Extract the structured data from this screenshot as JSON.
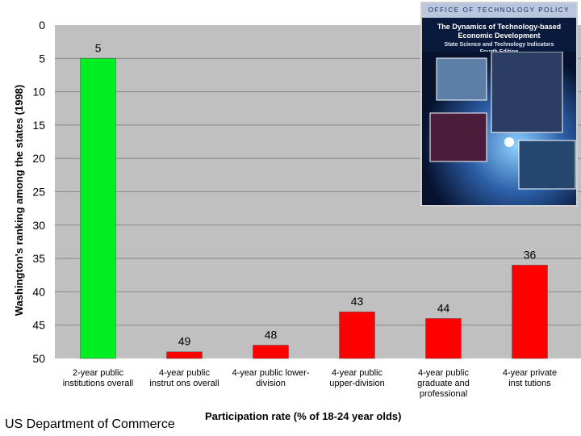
{
  "chart_data": {
    "type": "bar",
    "xlabel": "Participation rate (% of 18-24 year olds)",
    "ylabel": "Washington's ranking among the states (1998)",
    "ylim": [
      0,
      50
    ],
    "y_inverted": true,
    "yticks": [
      0,
      5,
      10,
      15,
      20,
      25,
      30,
      35,
      40,
      45,
      50
    ],
    "grid": true,
    "categories": [
      [
        "2-year public",
        "institutions overall"
      ],
      [
        "4-year public",
        "instrut ons overall"
      ],
      [
        "4-year public lower-",
        "division"
      ],
      [
        "4-year public",
        "upper-division"
      ],
      [
        "4-year public",
        "graduate and",
        "professional"
      ],
      [
        "4-year private",
        "inst tutions"
      ]
    ],
    "values": [
      5,
      49,
      48,
      43,
      44,
      36
    ],
    "colors": [
      "#00ee22",
      "#ff0000",
      "#ff0000",
      "#ff0000",
      "#ff0000",
      "#ff0000"
    ]
  },
  "source_text": "US Department of Commerce",
  "report_cover": {
    "header": "OFFICE OF TECHNOLOGY POLICY",
    "title": "The Dynamics of Technology-based Economic Development",
    "subtitle": "State Science and Technology Indicators",
    "edition": "Fourth Edition"
  }
}
